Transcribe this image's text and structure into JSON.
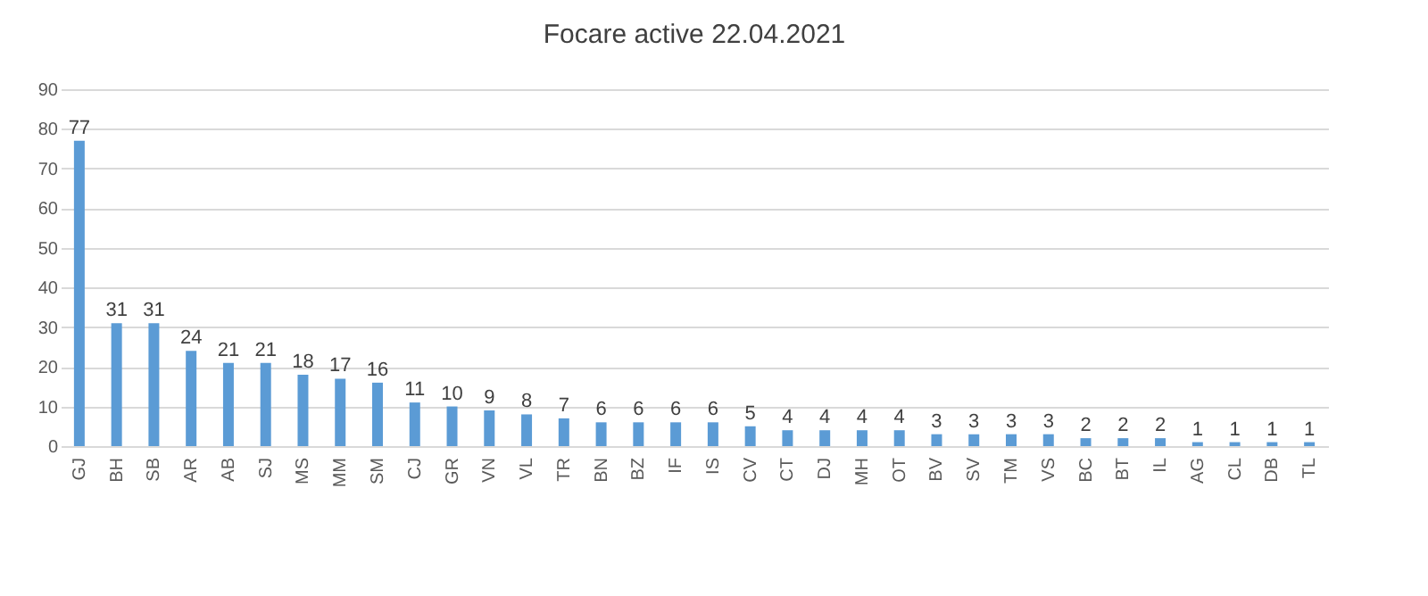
{
  "chart_data": {
    "type": "bar",
    "title": "Focare active 22.04.2021",
    "categories": [
      "GJ",
      "BH",
      "SB",
      "AR",
      "AB",
      "SJ",
      "MS",
      "MM",
      "SM",
      "CJ",
      "GR",
      "VN",
      "VL",
      "TR",
      "BN",
      "BZ",
      "IF",
      "IS",
      "CV",
      "CT",
      "DJ",
      "MH",
      "OT",
      "BV",
      "SV",
      "TM",
      "VS",
      "BC",
      "BT",
      "IL",
      "AG",
      "CL",
      "DB",
      "TL"
    ],
    "values": [
      77,
      31,
      31,
      24,
      21,
      21,
      18,
      17,
      16,
      11,
      10,
      9,
      8,
      7,
      6,
      6,
      6,
      6,
      5,
      4,
      4,
      4,
      4,
      3,
      3,
      3,
      3,
      2,
      2,
      2,
      1,
      1,
      1,
      1
    ],
    "color": "#5b9bd5",
    "ylim": [
      0,
      90
    ],
    "yticks": [
      0,
      10,
      20,
      30,
      40,
      50,
      60,
      70,
      80,
      90
    ],
    "grid": "y",
    "data_labels": true
  }
}
